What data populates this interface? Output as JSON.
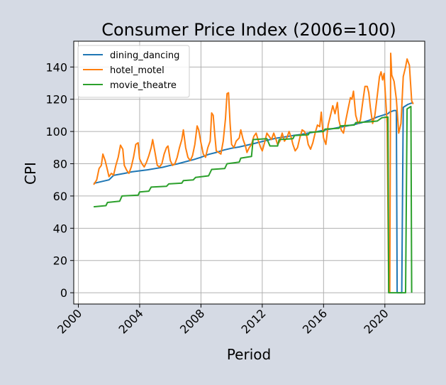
{
  "chart_data": {
    "type": "line",
    "title": "Consumer Price Index (2006=100)",
    "xlabel": "Period",
    "ylabel": "CPI",
    "xlim": [
      1999.7,
      2022.6
    ],
    "ylim": [
      -7,
      156
    ],
    "xticks": [
      2000,
      2004,
      2008,
      2012,
      2016,
      2020
    ],
    "yticks": [
      0,
      20,
      40,
      60,
      80,
      100,
      120,
      140
    ],
    "grid": true,
    "legend_position": "top-left",
    "series": [
      {
        "name": "dining_dancing",
        "color": "#1f77b4",
        "points": [
          [
            2001.0,
            67.8
          ],
          [
            2001.5,
            68.9
          ],
          [
            2002.0,
            70.0
          ],
          [
            2002.3,
            72.8
          ],
          [
            2003.0,
            74.0
          ],
          [
            2003.5,
            75.0
          ],
          [
            2004.0,
            75.6
          ],
          [
            2004.5,
            76.2
          ],
          [
            2005.0,
            77.0
          ],
          [
            2005.5,
            77.8
          ],
          [
            2006.0,
            79.0
          ],
          [
            2006.5,
            80.0
          ],
          [
            2007.0,
            81.3
          ],
          [
            2007.5,
            82.5
          ],
          [
            2008.0,
            84.0
          ],
          [
            2008.5,
            85.8
          ],
          [
            2009.0,
            87.0
          ],
          [
            2009.5,
            88.5
          ],
          [
            2010.0,
            89.6
          ],
          [
            2010.5,
            90.4
          ],
          [
            2011.0,
            91.5
          ],
          [
            2011.5,
            92.6
          ],
          [
            2012.0,
            93.8
          ],
          [
            2012.5,
            95.0
          ],
          [
            2013.0,
            96.0
          ],
          [
            2013.5,
            96.7
          ],
          [
            2014.0,
            97.5
          ],
          [
            2014.5,
            98.1
          ],
          [
            2015.0,
            99.0
          ],
          [
            2015.5,
            99.8
          ],
          [
            2016.0,
            100.8
          ],
          [
            2016.5,
            101.6
          ],
          [
            2017.0,
            102.5
          ],
          [
            2017.5,
            103.4
          ],
          [
            2018.0,
            104.3
          ],
          [
            2018.5,
            105.5
          ],
          [
            2019.0,
            107.0
          ],
          [
            2019.5,
            109.0
          ],
          [
            2020.0,
            110.5
          ],
          [
            2020.2,
            111.0
          ],
          [
            2020.3,
            112.0
          ],
          [
            2020.6,
            113.0
          ],
          [
            2020.75,
            113.0
          ],
          [
            2020.8,
            0
          ],
          [
            2021.1,
            0
          ],
          [
            2021.2,
            115.0
          ],
          [
            2021.5,
            116.8
          ],
          [
            2021.7,
            117.5
          ],
          [
            2021.85,
            117.8
          ]
        ]
      },
      {
        "name": "hotel_motel",
        "color": "#ff7f0e",
        "points": [
          [
            2001.0,
            67.0
          ],
          [
            2001.2,
            70.0
          ],
          [
            2001.35,
            77.0
          ],
          [
            2001.5,
            79.0
          ],
          [
            2001.6,
            86.0
          ],
          [
            2001.75,
            82.0
          ],
          [
            2001.9,
            76.0
          ],
          [
            2002.0,
            72.0
          ],
          [
            2002.15,
            74.0
          ],
          [
            2002.3,
            73.0
          ],
          [
            2002.45,
            79.0
          ],
          [
            2002.6,
            84.0
          ],
          [
            2002.75,
            91.5
          ],
          [
            2002.9,
            89.0
          ],
          [
            2003.0,
            79.0
          ],
          [
            2003.15,
            76.0
          ],
          [
            2003.3,
            74.0
          ],
          [
            2003.45,
            78.0
          ],
          [
            2003.6,
            84.0
          ],
          [
            2003.75,
            92.0
          ],
          [
            2003.9,
            93.0
          ],
          [
            2004.0,
            83.0
          ],
          [
            2004.15,
            80.0
          ],
          [
            2004.3,
            78.0
          ],
          [
            2004.45,
            81.0
          ],
          [
            2004.6,
            85.0
          ],
          [
            2004.75,
            90.0
          ],
          [
            2004.85,
            95.0
          ],
          [
            2005.0,
            87.0
          ],
          [
            2005.15,
            79.0
          ],
          [
            2005.3,
            78.0
          ],
          [
            2005.45,
            80.0
          ],
          [
            2005.6,
            86.0
          ],
          [
            2005.75,
            90.0
          ],
          [
            2005.85,
            91.0
          ],
          [
            2006.0,
            82.0
          ],
          [
            2006.15,
            79.0
          ],
          [
            2006.3,
            80.0
          ],
          [
            2006.45,
            84.0
          ],
          [
            2006.6,
            90.0
          ],
          [
            2006.75,
            95.0
          ],
          [
            2006.85,
            101.0
          ],
          [
            2007.0,
            90.0
          ],
          [
            2007.15,
            84.0
          ],
          [
            2007.3,
            82.0
          ],
          [
            2007.45,
            85.0
          ],
          [
            2007.6,
            92.0
          ],
          [
            2007.75,
            103.5
          ],
          [
            2007.85,
            101.0
          ],
          [
            2008.0,
            93.0
          ],
          [
            2008.15,
            86.0
          ],
          [
            2008.3,
            84.0
          ],
          [
            2008.45,
            90.0
          ],
          [
            2008.6,
            94.0
          ],
          [
            2008.7,
            111.5
          ],
          [
            2008.8,
            110.0
          ],
          [
            2008.9,
            98.0
          ],
          [
            2009.0,
            88.0
          ],
          [
            2009.15,
            87.0
          ],
          [
            2009.3,
            86.0
          ],
          [
            2009.45,
            94.0
          ],
          [
            2009.6,
            108.0
          ],
          [
            2009.7,
            123.5
          ],
          [
            2009.8,
            124.0
          ],
          [
            2009.9,
            105.0
          ],
          [
            2010.0,
            92.0
          ],
          [
            2010.15,
            90.0
          ],
          [
            2010.3,
            94.0
          ],
          [
            2010.5,
            96.0
          ],
          [
            2010.6,
            101.0
          ],
          [
            2010.75,
            95.0
          ],
          [
            2010.9,
            91.0
          ],
          [
            2011.0,
            87.0
          ],
          [
            2011.15,
            90.0
          ],
          [
            2011.3,
            92.0
          ],
          [
            2011.45,
            97.0
          ],
          [
            2011.6,
            99.0
          ],
          [
            2011.75,
            94.0
          ],
          [
            2011.9,
            90.0
          ],
          [
            2012.0,
            88.0
          ],
          [
            2012.15,
            93.0
          ],
          [
            2012.3,
            99.0
          ],
          [
            2012.45,
            97.0
          ],
          [
            2012.6,
            95.0
          ],
          [
            2012.75,
            99.0
          ],
          [
            2012.9,
            95.0
          ],
          [
            2013.0,
            92.0
          ],
          [
            2013.15,
            94.0
          ],
          [
            2013.3,
            99.0
          ],
          [
            2013.45,
            94.0
          ],
          [
            2013.6,
            96.0
          ],
          [
            2013.75,
            100.0
          ],
          [
            2013.9,
            96.0
          ],
          [
            2014.0,
            92.0
          ],
          [
            2014.15,
            88.0
          ],
          [
            2014.3,
            90.0
          ],
          [
            2014.45,
            96.0
          ],
          [
            2014.6,
            101.0
          ],
          [
            2014.75,
            100.0
          ],
          [
            2014.9,
            97.0
          ],
          [
            2015.0,
            92.0
          ],
          [
            2015.15,
            89.0
          ],
          [
            2015.3,
            93.0
          ],
          [
            2015.45,
            99.0
          ],
          [
            2015.6,
            104.0
          ],
          [
            2015.75,
            103.0
          ],
          [
            2015.85,
            112.0
          ],
          [
            2015.95,
            100.0
          ],
          [
            2016.0,
            96.0
          ],
          [
            2016.15,
            92.0
          ],
          [
            2016.3,
            104.0
          ],
          [
            2016.45,
            110.0
          ],
          [
            2016.6,
            116.0
          ],
          [
            2016.75,
            111.0
          ],
          [
            2016.9,
            118.0
          ],
          [
            2017.0,
            107.0
          ],
          [
            2017.15,
            101.0
          ],
          [
            2017.3,
            99.0
          ],
          [
            2017.45,
            107.0
          ],
          [
            2017.6,
            114.0
          ],
          [
            2017.75,
            121.0
          ],
          [
            2017.85,
            120.0
          ],
          [
            2017.95,
            125.0
          ],
          [
            2018.1,
            110.0
          ],
          [
            2018.25,
            105.0
          ],
          [
            2018.4,
            107.0
          ],
          [
            2018.55,
            118.0
          ],
          [
            2018.7,
            128.0
          ],
          [
            2018.85,
            128.0
          ],
          [
            2018.95,
            124.0
          ],
          [
            2019.05,
            115.0
          ],
          [
            2019.2,
            105.0
          ],
          [
            2019.35,
            110.0
          ],
          [
            2019.5,
            122.0
          ],
          [
            2019.65,
            134.0
          ],
          [
            2019.75,
            137.0
          ],
          [
            2019.85,
            132.0
          ],
          [
            2019.95,
            136.0
          ],
          [
            2020.05,
            120.0
          ],
          [
            2020.15,
            105.0
          ],
          [
            2020.25,
            0.5
          ],
          [
            2020.32,
            0.5
          ],
          [
            2020.38,
            148.5
          ],
          [
            2020.45,
            135.0
          ],
          [
            2020.6,
            131.0
          ],
          [
            2020.75,
            120.0
          ],
          [
            2020.9,
            99.0
          ],
          [
            2021.05,
            105.0
          ],
          [
            2021.2,
            134.0
          ],
          [
            2021.35,
            140.0
          ],
          [
            2021.45,
            145.0
          ],
          [
            2021.6,
            141.0
          ],
          [
            2021.75,
            119.0
          ],
          [
            2021.85,
            117.0
          ]
        ]
      },
      {
        "name": "movie_theatre",
        "color": "#2ca02c",
        "points": [
          [
            2001.0,
            53.3
          ],
          [
            2001.8,
            54.0
          ],
          [
            2001.9,
            56.0
          ],
          [
            2002.7,
            56.8
          ],
          [
            2002.85,
            60.0
          ],
          [
            2003.9,
            60.5
          ],
          [
            2004.0,
            62.5
          ],
          [
            2004.6,
            63.0
          ],
          [
            2004.75,
            65.5
          ],
          [
            2005.75,
            66.0
          ],
          [
            2005.9,
            67.5
          ],
          [
            2006.75,
            68.0
          ],
          [
            2006.85,
            69.5
          ],
          [
            2007.5,
            70.0
          ],
          [
            2007.65,
            71.5
          ],
          [
            2008.5,
            72.5
          ],
          [
            2008.7,
            76.5
          ],
          [
            2009.55,
            77.0
          ],
          [
            2009.7,
            80.0
          ],
          [
            2010.5,
            81.0
          ],
          [
            2010.6,
            83.5
          ],
          [
            2011.3,
            84.5
          ],
          [
            2011.4,
            95.0
          ],
          [
            2012.3,
            95.5
          ],
          [
            2012.5,
            91.0
          ],
          [
            2013.0,
            91.0
          ],
          [
            2013.1,
            95.0
          ],
          [
            2014.0,
            95.5
          ],
          [
            2014.1,
            97.5
          ],
          [
            2015.0,
            98.0
          ],
          [
            2015.1,
            99.5
          ],
          [
            2016.0,
            100.0
          ],
          [
            2016.1,
            101.5
          ],
          [
            2017.0,
            102.0
          ],
          [
            2017.1,
            103.5
          ],
          [
            2018.0,
            104.0
          ],
          [
            2018.1,
            105.5
          ],
          [
            2019.0,
            106.0
          ],
          [
            2019.5,
            106.5
          ],
          [
            2019.8,
            108.5
          ],
          [
            2020.2,
            109.0
          ],
          [
            2020.25,
            0
          ],
          [
            2021.35,
            0
          ],
          [
            2021.45,
            114.0
          ],
          [
            2021.7,
            115.5
          ],
          [
            2021.75,
            0
          ]
        ]
      }
    ]
  }
}
